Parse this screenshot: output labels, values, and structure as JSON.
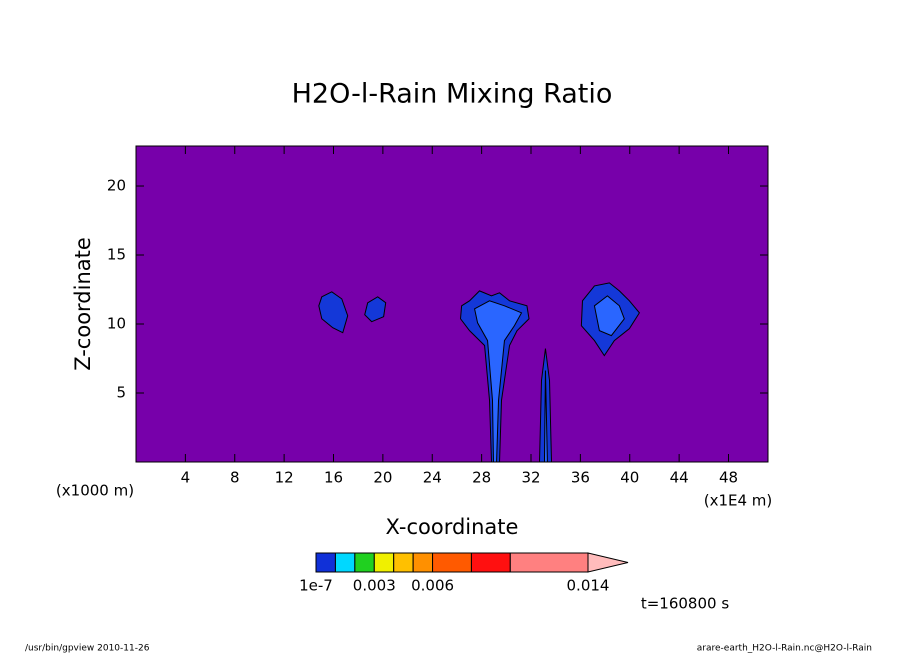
{
  "chart_data": {
    "type": "contour",
    "title": "H2O-l-Rain Mixing Ratio",
    "x_label": "X-coordinate",
    "y_label": "Z-coordinate",
    "x_unit": "(x1E4 m)",
    "y_unit": "(x1000 m)",
    "xlim": [
      0,
      51.2
    ],
    "ylim": [
      0,
      22.9
    ],
    "xticks": [
      4,
      8,
      12,
      16,
      20,
      24,
      28,
      32,
      36,
      40,
      44,
      48
    ],
    "yticks": [
      5,
      10,
      15,
      20
    ],
    "background_color": "#7700aa",
    "regions": [
      {
        "value": 1e-07,
        "color": "#1438d8",
        "points": [
          [
            15.05,
            11.97
          ],
          [
            15.86,
            12.33
          ],
          [
            16.67,
            11.82
          ],
          [
            17.15,
            10.6
          ],
          [
            16.75,
            9.37
          ],
          [
            15.94,
            9.73
          ],
          [
            15.05,
            10.38
          ],
          [
            14.81,
            11.32
          ]
        ]
      },
      {
        "value": 1e-07,
        "color": "#1438d8",
        "points": [
          [
            18.77,
            11.54
          ],
          [
            19.58,
            11.97
          ],
          [
            20.23,
            11.54
          ],
          [
            20.06,
            10.53
          ],
          [
            19.09,
            10.17
          ],
          [
            18.53,
            10.67
          ]
        ]
      },
      {
        "value": 1e-07,
        "color": "#1438d8",
        "points": [
          [
            26.38,
            11.32
          ],
          [
            27.02,
            11.68
          ],
          [
            27.83,
            12.4
          ],
          [
            28.8,
            12.04
          ],
          [
            29.45,
            12.26
          ],
          [
            30.26,
            11.68
          ],
          [
            31.67,
            11.32
          ],
          [
            31.84,
            10.38
          ],
          [
            30.87,
            9.52
          ],
          [
            30.26,
            8.44
          ],
          [
            29.61,
            4.47
          ],
          [
            29.45,
            0
          ],
          [
            28.8,
            0
          ],
          [
            28.64,
            4.47
          ],
          [
            28.24,
            8.44
          ],
          [
            27.02,
            9.52
          ],
          [
            26.29,
            10.38
          ]
        ]
      },
      {
        "value": 0.001,
        "color": "#2a66ff",
        "points": [
          [
            27.43,
            11.1
          ],
          [
            28.64,
            11.68
          ],
          [
            29.85,
            11.32
          ],
          [
            31.23,
            10.81
          ],
          [
            30.66,
            9.88
          ],
          [
            29.85,
            8.8
          ],
          [
            29.37,
            4.47
          ],
          [
            29.21,
            0
          ],
          [
            28.96,
            0
          ],
          [
            28.88,
            4.47
          ],
          [
            28.48,
            8.8
          ],
          [
            27.67,
            10.09
          ]
        ]
      },
      {
        "value": 1e-07,
        "color": "#1438d8",
        "points": [
          [
            32.69,
            0
          ],
          [
            32.85,
            5.91
          ],
          [
            33.17,
            8.22
          ],
          [
            33.5,
            5.91
          ],
          [
            33.66,
            0
          ]
        ]
      },
      {
        "value": 0.001,
        "color": "#2a66ff",
        "points": [
          [
            33.09,
            0
          ],
          [
            33.17,
            6.63
          ],
          [
            33.33,
            0
          ]
        ]
      },
      {
        "value": 1e-07,
        "color": "#1438d8",
        "points": [
          [
            36.17,
            11.68
          ],
          [
            37.14,
            12.76
          ],
          [
            38.35,
            12.98
          ],
          [
            39.16,
            12.4
          ],
          [
            39.97,
            11.68
          ],
          [
            40.78,
            10.81
          ],
          [
            39.97,
            9.66
          ],
          [
            38.75,
            8.8
          ],
          [
            37.94,
            7.71
          ],
          [
            37.14,
            8.8
          ],
          [
            36.08,
            9.88
          ]
        ]
      },
      {
        "value": 0.001,
        "color": "#2a66ff",
        "points": [
          [
            37.14,
            11.32
          ],
          [
            38.19,
            12.04
          ],
          [
            39.16,
            11.32
          ],
          [
            39.56,
            10.38
          ],
          [
            38.51,
            9.16
          ],
          [
            37.54,
            9.52
          ]
        ]
      }
    ],
    "colorbar": {
      "levels": [
        1e-07,
        0.001,
        0.002,
        0.003,
        0.004,
        0.005,
        0.006,
        0.008,
        0.01,
        0.014
      ],
      "colors": [
        "#1030d8",
        "#00d8ff",
        "#20d020",
        "#f0f000",
        "#ffc000",
        "#ff9000",
        "#ff5a00",
        "#ff1010",
        "#ff8080",
        "#ffbcbc"
      ],
      "lim": [
        0,
        0.014
      ],
      "ticks": [
        1e-07,
        0.003,
        0.006,
        0.014
      ]
    },
    "time_label": "t=160800 s",
    "footer_left": "/usr/bin/gpview  2010-11-26",
    "footer_right": "arare-earth_H2O-l-Rain.nc@H2O-l-Rain"
  }
}
